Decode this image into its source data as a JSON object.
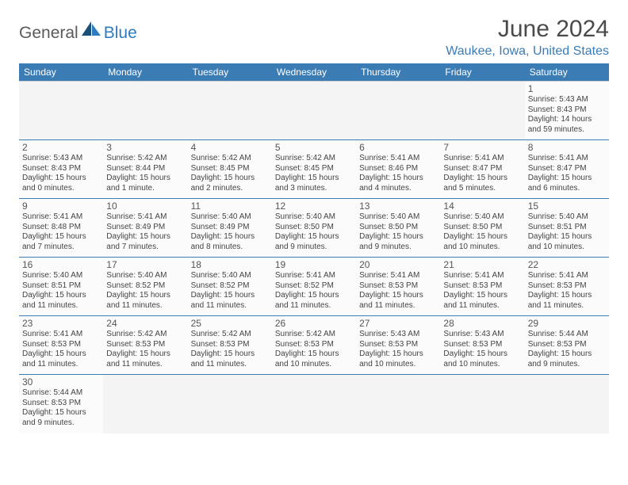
{
  "logo": {
    "general": "General",
    "blue": "Blue"
  },
  "title": "June 2024",
  "location": "Waukee, Iowa, United States",
  "dayHeaders": [
    "Sunday",
    "Monday",
    "Tuesday",
    "Wednesday",
    "Thursday",
    "Friday",
    "Saturday"
  ],
  "colors": {
    "headerBg": "#3c7cb5",
    "headerText": "#ffffff",
    "locationText": "#3c7cb5",
    "titleText": "#4a4a4a",
    "cellBorder": "#3c7cb5"
  },
  "weeks": [
    [
      null,
      null,
      null,
      null,
      null,
      null,
      {
        "n": "1",
        "sr": "Sunrise: 5:43 AM",
        "ss": "Sunset: 8:43 PM",
        "dl1": "Daylight: 14 hours",
        "dl2": "and 59 minutes."
      }
    ],
    [
      {
        "n": "2",
        "sr": "Sunrise: 5:43 AM",
        "ss": "Sunset: 8:43 PM",
        "dl1": "Daylight: 15 hours",
        "dl2": "and 0 minutes."
      },
      {
        "n": "3",
        "sr": "Sunrise: 5:42 AM",
        "ss": "Sunset: 8:44 PM",
        "dl1": "Daylight: 15 hours",
        "dl2": "and 1 minute."
      },
      {
        "n": "4",
        "sr": "Sunrise: 5:42 AM",
        "ss": "Sunset: 8:45 PM",
        "dl1": "Daylight: 15 hours",
        "dl2": "and 2 minutes."
      },
      {
        "n": "5",
        "sr": "Sunrise: 5:42 AM",
        "ss": "Sunset: 8:45 PM",
        "dl1": "Daylight: 15 hours",
        "dl2": "and 3 minutes."
      },
      {
        "n": "6",
        "sr": "Sunrise: 5:41 AM",
        "ss": "Sunset: 8:46 PM",
        "dl1": "Daylight: 15 hours",
        "dl2": "and 4 minutes."
      },
      {
        "n": "7",
        "sr": "Sunrise: 5:41 AM",
        "ss": "Sunset: 8:47 PM",
        "dl1": "Daylight: 15 hours",
        "dl2": "and 5 minutes."
      },
      {
        "n": "8",
        "sr": "Sunrise: 5:41 AM",
        "ss": "Sunset: 8:47 PM",
        "dl1": "Daylight: 15 hours",
        "dl2": "and 6 minutes."
      }
    ],
    [
      {
        "n": "9",
        "sr": "Sunrise: 5:41 AM",
        "ss": "Sunset: 8:48 PM",
        "dl1": "Daylight: 15 hours",
        "dl2": "and 7 minutes."
      },
      {
        "n": "10",
        "sr": "Sunrise: 5:41 AM",
        "ss": "Sunset: 8:49 PM",
        "dl1": "Daylight: 15 hours",
        "dl2": "and 7 minutes."
      },
      {
        "n": "11",
        "sr": "Sunrise: 5:40 AM",
        "ss": "Sunset: 8:49 PM",
        "dl1": "Daylight: 15 hours",
        "dl2": "and 8 minutes."
      },
      {
        "n": "12",
        "sr": "Sunrise: 5:40 AM",
        "ss": "Sunset: 8:50 PM",
        "dl1": "Daylight: 15 hours",
        "dl2": "and 9 minutes."
      },
      {
        "n": "13",
        "sr": "Sunrise: 5:40 AM",
        "ss": "Sunset: 8:50 PM",
        "dl1": "Daylight: 15 hours",
        "dl2": "and 9 minutes."
      },
      {
        "n": "14",
        "sr": "Sunrise: 5:40 AM",
        "ss": "Sunset: 8:50 PM",
        "dl1": "Daylight: 15 hours",
        "dl2": "and 10 minutes."
      },
      {
        "n": "15",
        "sr": "Sunrise: 5:40 AM",
        "ss": "Sunset: 8:51 PM",
        "dl1": "Daylight: 15 hours",
        "dl2": "and 10 minutes."
      }
    ],
    [
      {
        "n": "16",
        "sr": "Sunrise: 5:40 AM",
        "ss": "Sunset: 8:51 PM",
        "dl1": "Daylight: 15 hours",
        "dl2": "and 11 minutes."
      },
      {
        "n": "17",
        "sr": "Sunrise: 5:40 AM",
        "ss": "Sunset: 8:52 PM",
        "dl1": "Daylight: 15 hours",
        "dl2": "and 11 minutes."
      },
      {
        "n": "18",
        "sr": "Sunrise: 5:40 AM",
        "ss": "Sunset: 8:52 PM",
        "dl1": "Daylight: 15 hours",
        "dl2": "and 11 minutes."
      },
      {
        "n": "19",
        "sr": "Sunrise: 5:41 AM",
        "ss": "Sunset: 8:52 PM",
        "dl1": "Daylight: 15 hours",
        "dl2": "and 11 minutes."
      },
      {
        "n": "20",
        "sr": "Sunrise: 5:41 AM",
        "ss": "Sunset: 8:53 PM",
        "dl1": "Daylight: 15 hours",
        "dl2": "and 11 minutes."
      },
      {
        "n": "21",
        "sr": "Sunrise: 5:41 AM",
        "ss": "Sunset: 8:53 PM",
        "dl1": "Daylight: 15 hours",
        "dl2": "and 11 minutes."
      },
      {
        "n": "22",
        "sr": "Sunrise: 5:41 AM",
        "ss": "Sunset: 8:53 PM",
        "dl1": "Daylight: 15 hours",
        "dl2": "and 11 minutes."
      }
    ],
    [
      {
        "n": "23",
        "sr": "Sunrise: 5:41 AM",
        "ss": "Sunset: 8:53 PM",
        "dl1": "Daylight: 15 hours",
        "dl2": "and 11 minutes."
      },
      {
        "n": "24",
        "sr": "Sunrise: 5:42 AM",
        "ss": "Sunset: 8:53 PM",
        "dl1": "Daylight: 15 hours",
        "dl2": "and 11 minutes."
      },
      {
        "n": "25",
        "sr": "Sunrise: 5:42 AM",
        "ss": "Sunset: 8:53 PM",
        "dl1": "Daylight: 15 hours",
        "dl2": "and 11 minutes."
      },
      {
        "n": "26",
        "sr": "Sunrise: 5:42 AM",
        "ss": "Sunset: 8:53 PM",
        "dl1": "Daylight: 15 hours",
        "dl2": "and 10 minutes."
      },
      {
        "n": "27",
        "sr": "Sunrise: 5:43 AM",
        "ss": "Sunset: 8:53 PM",
        "dl1": "Daylight: 15 hours",
        "dl2": "and 10 minutes."
      },
      {
        "n": "28",
        "sr": "Sunrise: 5:43 AM",
        "ss": "Sunset: 8:53 PM",
        "dl1": "Daylight: 15 hours",
        "dl2": "and 10 minutes."
      },
      {
        "n": "29",
        "sr": "Sunrise: 5:44 AM",
        "ss": "Sunset: 8:53 PM",
        "dl1": "Daylight: 15 hours",
        "dl2": "and 9 minutes."
      }
    ],
    [
      {
        "n": "30",
        "sr": "Sunrise: 5:44 AM",
        "ss": "Sunset: 8:53 PM",
        "dl1": "Daylight: 15 hours",
        "dl2": "and 9 minutes."
      },
      null,
      null,
      null,
      null,
      null,
      null
    ]
  ]
}
